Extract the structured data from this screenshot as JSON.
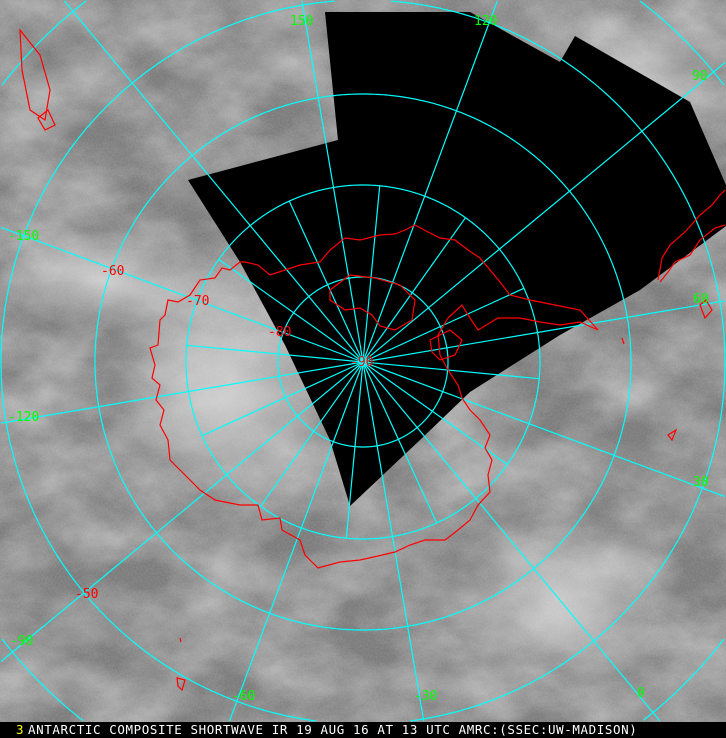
{
  "caption": "ANTARCTIC COMPOSITE SHORTWAVE IR 19 AUG 16 AT 13 UTC AMRC:(SSEC:UW-MADISON)",
  "caption_mark": "3",
  "colors": {
    "grid": "#00ffff",
    "coastline": "#ff0000",
    "longitude_labels": "#00ff00",
    "latitude_labels": "#ff0000",
    "no_data": "#000000"
  },
  "longitude_labels": [
    "150",
    "120",
    "90",
    "60",
    "30",
    "0",
    "-30",
    "-60",
    "-90",
    "-120",
    "-150"
  ],
  "latitude_labels": [
    "-50",
    "-60",
    "-70",
    "-80",
    "-90"
  ]
}
